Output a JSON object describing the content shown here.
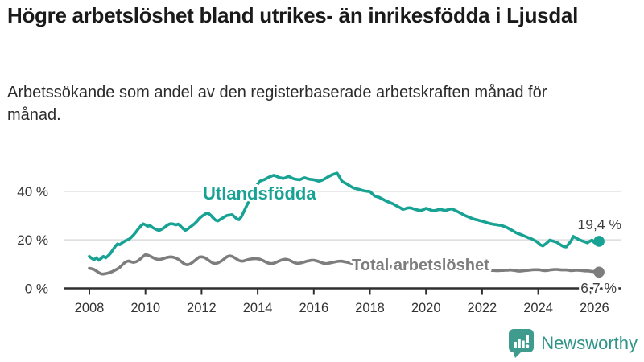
{
  "header": {
    "title": "Högre arbetslöshet bland utrikes- än inrikesfödda i Ljusdal",
    "subtitle": "Arbetssökande som andel av den registerbaserade arbetskraften månad för månad."
  },
  "chart_data": {
    "type": "line",
    "x_unit": "month",
    "x_start": "2008-01",
    "x_end": "2026-03",
    "x_ticks": [
      2008,
      2010,
      2012,
      2014,
      2016,
      2018,
      2020,
      2022,
      2024,
      2026
    ],
    "x_tick_labels": [
      "2008",
      "2010",
      "2012",
      "2014",
      "2016",
      "2018",
      "2020",
      "2022",
      "2024",
      "2026"
    ],
    "y_ticks": [
      0,
      20,
      40
    ],
    "y_tick_labels": [
      "0 %",
      "20 %",
      "40 %"
    ],
    "ylim": [
      0,
      50
    ],
    "grid": "horizontal",
    "legend": "inline-labels-on-lines",
    "axis_color": "#2f2f2f",
    "grid_color": "#dcdcdc",
    "tick_label_color": "#333333",
    "end_label_color": "#3d3d3d",
    "series": [
      {
        "name": "Utlandsfödda",
        "color": "#17a294",
        "end_label": "19,4 %",
        "end_value": 19.4,
        "values": [
          13.2,
          12.4,
          11.8,
          12.6,
          11.6,
          12.3,
          13.2,
          12.6,
          13.4,
          14.4,
          15.8,
          17.2,
          18.3,
          18.0,
          18.8,
          19.4,
          19.9,
          20.3,
          21.1,
          22.1,
          23.3,
          24.6,
          25.7,
          26.6,
          26.2,
          25.6,
          25.9,
          25.1,
          24.6,
          24.1,
          23.9,
          24.4,
          25.0,
          25.8,
          26.4,
          26.7,
          26.5,
          26.2,
          26.5,
          25.7,
          24.7,
          23.9,
          24.4,
          25.2,
          25.9,
          26.7,
          27.6,
          28.8,
          29.6,
          30.3,
          30.9,
          30.9,
          30.1,
          29.0,
          28.1,
          27.8,
          28.4,
          29.0,
          29.6,
          30.1,
          30.2,
          30.4,
          29.6,
          28.7,
          28.3,
          29.5,
          31.5,
          33.5,
          35.5,
          37.5,
          39.5,
          41.5,
          43.0,
          44.2,
          44.6,
          44.9,
          45.4,
          45.9,
          46.3,
          46.6,
          46.2,
          45.8,
          45.5,
          45.3,
          45.6,
          46.2,
          45.8,
          45.3,
          45.0,
          44.9,
          44.8,
          45.2,
          45.6,
          45.3,
          45.0,
          44.9,
          44.8,
          44.5,
          44.2,
          44.4,
          44.8,
          45.3,
          45.9,
          46.4,
          46.9,
          47.2,
          47.5,
          45.9,
          44.2,
          43.6,
          43.1,
          42.5,
          41.9,
          41.4,
          41.1,
          40.9,
          40.6,
          40.3,
          40.1,
          40.0,
          39.9,
          39.0,
          38.1,
          37.8,
          37.5,
          37.0,
          36.5,
          36.0,
          35.6,
          35.2,
          34.8,
          34.2,
          33.7,
          33.2,
          32.6,
          32.8,
          33.1,
          33.2,
          33.0,
          32.7,
          32.4,
          32.2,
          32.1,
          32.5,
          33.0,
          32.7,
          32.3,
          32.0,
          32.1,
          32.4,
          32.6,
          32.4,
          32.1,
          32.3,
          32.6,
          32.8,
          32.4,
          31.9,
          31.4,
          30.9,
          30.4,
          29.9,
          29.5,
          29.1,
          28.7,
          28.4,
          28.2,
          27.9,
          27.7,
          27.4,
          27.1,
          26.8,
          26.6,
          26.4,
          26.3,
          26.1,
          26.0,
          25.7,
          25.3,
          24.9,
          24.3,
          23.8,
          23.2,
          22.7,
          22.4,
          22.0,
          21.6,
          21.2,
          20.8,
          20.5,
          20.0,
          19.5,
          18.8,
          17.9,
          17.5,
          18.2,
          19.0,
          19.9,
          19.6,
          19.3,
          19.0,
          18.3,
          17.7,
          17.2,
          17.1,
          18.3,
          19.5,
          21.4,
          20.9,
          20.3,
          19.9,
          19.5,
          19.2,
          18.8,
          19.4,
          19.9,
          18.9,
          19.1,
          19.4
        ]
      },
      {
        "name": "Total arbetslöshet",
        "color": "#7d7d7d",
        "end_label": "6,7 %",
        "end_value": 6.7,
        "values": [
          8.3,
          8.1,
          7.8,
          7.2,
          6.5,
          6.0,
          5.9,
          6.1,
          6.3,
          6.6,
          7.0,
          7.5,
          8.0,
          8.7,
          9.6,
          10.5,
          11.1,
          11.3,
          10.9,
          10.7,
          11.0,
          11.5,
          12.3,
          13.2,
          13.9,
          13.7,
          13.3,
          12.8,
          12.3,
          12.0,
          11.9,
          12.1,
          12.4,
          12.7,
          12.9,
          13.0,
          12.8,
          12.5,
          12.0,
          11.3,
          10.5,
          9.9,
          9.7,
          10.0,
          10.6,
          11.4,
          12.2,
          12.9,
          13.0,
          12.8,
          12.3,
          11.6,
          10.9,
          10.4,
          10.2,
          10.5,
          11.0,
          11.6,
          12.4,
          13.1,
          13.4,
          13.2,
          12.7,
          12.1,
          11.5,
          11.2,
          11.3,
          11.6,
          11.9,
          12.1,
          12.2,
          12.3,
          12.2,
          12.0,
          11.6,
          11.1,
          10.6,
          10.3,
          10.2,
          10.4,
          10.8,
          11.2,
          11.6,
          11.9,
          12.0,
          11.8,
          11.4,
          10.9,
          10.5,
          10.3,
          10.4,
          10.6,
          10.9,
          11.2,
          11.4,
          11.6,
          11.6,
          11.4,
          11.1,
          10.7,
          10.4,
          10.2,
          10.3,
          10.5,
          10.7,
          10.9,
          11.1,
          11.2,
          11.2,
          11.0,
          10.8,
          10.6,
          10.4,
          10.3,
          10.2,
          10.2,
          10.1,
          10.0,
          10.0,
          9.9,
          9.9,
          9.8,
          9.6,
          9.5,
          9.3,
          9.2,
          9.1,
          9.1,
          9.0,
          8.9,
          8.9,
          8.8,
          8.8,
          8.7,
          8.6,
          8.5,
          8.5,
          8.4,
          8.4,
          8.3,
          8.3,
          8.3,
          8.4,
          8.5,
          8.6,
          8.7,
          8.9,
          9.2,
          9.4,
          9.5,
          9.5,
          9.4,
          9.3,
          9.2,
          9.1,
          9.0,
          9.0,
          8.9,
          8.8,
          8.6,
          8.5,
          8.3,
          8.2,
          8.1,
          8.0,
          7.9,
          7.8,
          7.8,
          7.7,
          7.7,
          7.6,
          7.5,
          7.4,
          7.4,
          7.3,
          7.3,
          7.4,
          7.4,
          7.5,
          7.5,
          7.6,
          7.5,
          7.4,
          7.2,
          7.1,
          7.2,
          7.3,
          7.4,
          7.5,
          7.6,
          7.7,
          7.7,
          7.7,
          7.6,
          7.4,
          7.3,
          7.4,
          7.6,
          7.7,
          7.8,
          7.8,
          7.7,
          7.6,
          7.6,
          7.6,
          7.5,
          7.3,
          7.4,
          7.5,
          7.5,
          7.4,
          7.3,
          7.2,
          7.2,
          7.1,
          7.0,
          6.9,
          6.8,
          6.7
        ]
      }
    ]
  },
  "footer": {
    "brand_name": "Newsworthy",
    "brand_color": "#3f9b8e",
    "brand_text_color": "#2f9488",
    "logo_icon": "newsworthy-chart-bubble-icon"
  }
}
